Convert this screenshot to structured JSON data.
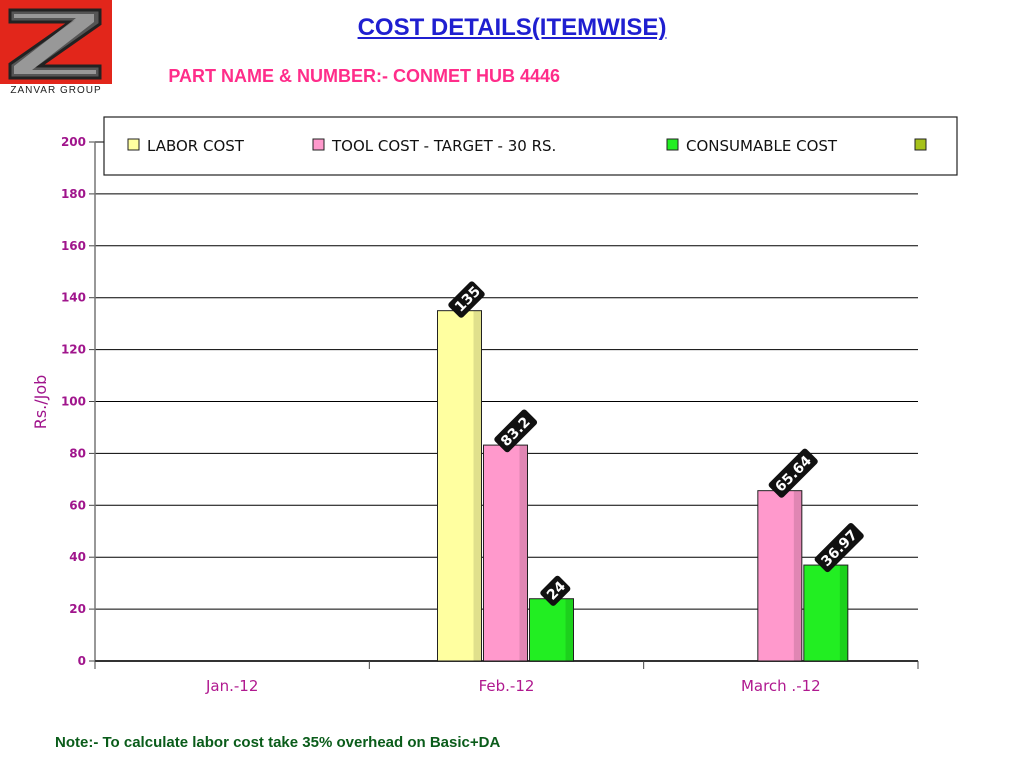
{
  "logo": {
    "brand": "ZANVAR GROUP"
  },
  "header": {
    "title": "COST DETAILS(ITEMWISE)",
    "subtitle": "PART NAME & NUMBER:- CONMET HUB 4446"
  },
  "note": "Note:- To calculate labor cost take 35% overhead on Basic+DA",
  "chart_data": {
    "type": "bar",
    "categories": [
      "Jan.-12",
      "Feb.-12",
      "March  .-12"
    ],
    "series": [
      {
        "name": "LABOR COST",
        "color": "#ffffa0",
        "values": [
          0,
          135,
          0
        ],
        "labels": [
          "",
          "135",
          ""
        ]
      },
      {
        "name": "TOOL COST - TARGET - 30 RS.",
        "color": "#ff99cc",
        "values": [
          0,
          83.2,
          65.64
        ],
        "labels": [
          "",
          "83.2",
          "65.64"
        ]
      },
      {
        "name": "CONSUMABLE COST",
        "color": "#22ee22",
        "values": [
          0,
          24,
          36.97
        ],
        "labels": [
          "",
          "24",
          "36.97"
        ]
      },
      {
        "name": "",
        "color": "#a6c21a",
        "values": [
          0,
          0,
          0
        ],
        "labels": [
          "",
          "",
          ""
        ]
      }
    ],
    "xlabel": "",
    "ylabel": "Rs./Job",
    "ylim": [
      0,
      200
    ],
    "yticks": [
      0,
      20,
      40,
      60,
      80,
      100,
      120,
      140,
      160,
      180,
      200
    ],
    "grid": true,
    "legend": "top"
  }
}
